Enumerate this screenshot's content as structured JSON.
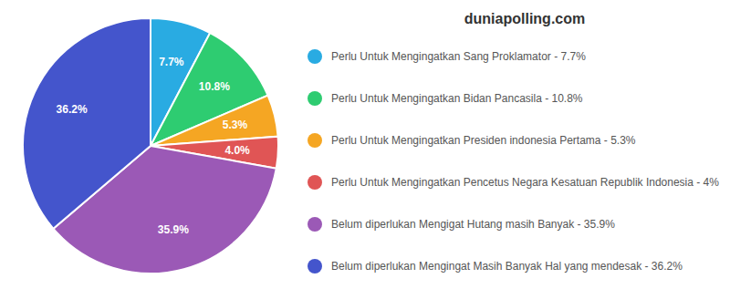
{
  "chart_data": {
    "type": "pie",
    "title": "duniapolling.com",
    "categories": [
      "Perlu Untuk Mengingatkan Sang Proklamator - 7.7%",
      "Perlu Untuk Mengingatkan Bidan Pancasila - 10.8%",
      "Perlu Untuk Mengingatkan Presiden indonesia Pertama - 5.3%",
      "Perlu Untuk Mengingatkan Pencetus Negara Kesatuan Republik Indonesia - 4%",
      "Belum diperlukan Mengigat Hutang masih Banyak - 35.9%",
      "Belum diperlukan Mengingat Masih Banyak Hal yang mendesak - 36.2%"
    ],
    "values": [
      7.7,
      10.8,
      5.3,
      4.0,
      35.9,
      36.2
    ],
    "value_labels": [
      "7.7%",
      "10.8%",
      "5.3%",
      "4.0%",
      "35.9%",
      "36.2%"
    ],
    "colors": [
      "#29ABE2",
      "#2ECC71",
      "#F5A623",
      "#E05555",
      "#9B59B6",
      "#4455CC"
    ],
    "data_labels": true,
    "legend": "right"
  }
}
